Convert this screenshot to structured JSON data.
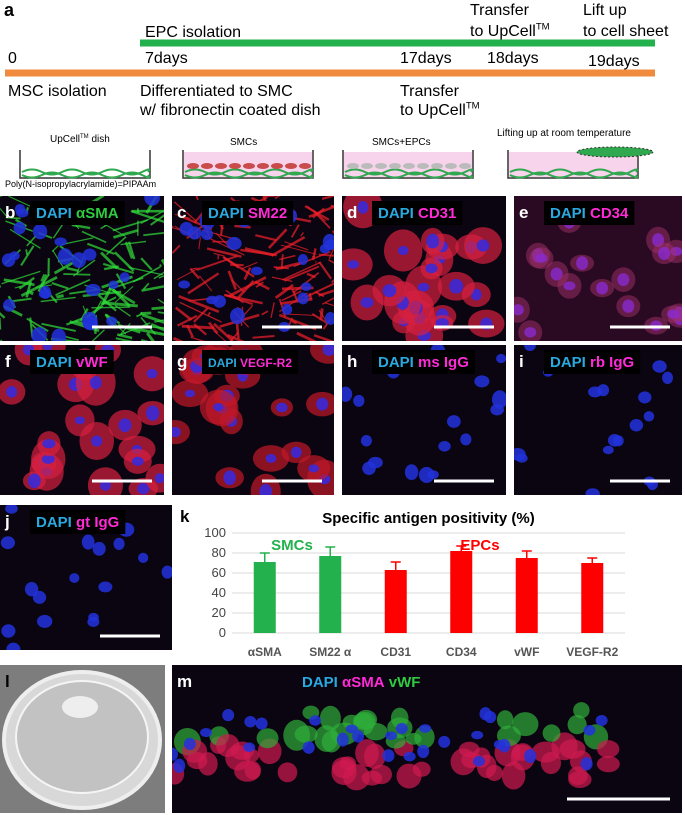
{
  "panel_a": {
    "texts": [
      "a",
      "EPC isolation",
      "Transfer",
      {
        "text": "to UpCell",
        "sup": "TM"
      },
      "Lift up",
      "to cell sheet",
      "0",
      "7days",
      "17days",
      "18days",
      "19days",
      "MSC isolation",
      "Differentiated to SMC",
      "w/ fibronectin coated dish",
      "Transfer",
      {
        "text": "to UpCell",
        "sup": "TM"
      }
    ],
    "dish_labels": [
      {
        "text": "UpCell",
        "sup": "TM",
        "after": " dish"
      },
      "Poly(N-isopropylacrylamide)=PIPAAm",
      "SMCs",
      "SMCs+EPCs",
      "Lifting up at room temperature"
    ]
  },
  "panels": [
    {
      "letter": "b",
      "labels": [
        {
          "text": "DAPI",
          "color": "#29a9e0"
        },
        {
          "text": "αSMA",
          "color": "#2ecc40"
        }
      ]
    },
    {
      "letter": "c",
      "labels": [
        {
          "text": "DAPI",
          "color": "#29a9e0"
        },
        {
          "text": "SM22",
          "color": "#ff2bd6"
        }
      ]
    },
    {
      "letter": "d",
      "labels": [
        {
          "text": "DAPI",
          "color": "#29a9e0"
        },
        {
          "text": "CD31",
          "color": "#ff2bd6"
        }
      ]
    },
    {
      "letter": "e",
      "labels": [
        {
          "text": "DAPI",
          "color": "#29a9e0"
        },
        {
          "text": "CD34",
          "color": "#ff2bd6"
        }
      ]
    },
    {
      "letter": "f",
      "labels": [
        {
          "text": "DAPI",
          "color": "#29a9e0"
        },
        {
          "text": "vWF",
          "color": "#ff2bd6"
        }
      ]
    },
    {
      "letter": "g",
      "labels": [
        {
          "text": "DAPI",
          "color": "#29a9e0"
        },
        {
          "text": "VEGF-R2",
          "color": "#ff2bd6"
        }
      ]
    },
    {
      "letter": "h",
      "labels": [
        {
          "text": "DAPI",
          "color": "#29a9e0"
        },
        {
          "text": "ms IgG",
          "color": "#ff2bd6"
        }
      ]
    },
    {
      "letter": "i",
      "labels": [
        {
          "text": "DAPI",
          "color": "#29a9e0"
        },
        {
          "text": "rb IgG",
          "color": "#ff2bd6"
        }
      ]
    },
    {
      "letter": "j",
      "labels": [
        {
          "text": "DAPI",
          "color": "#29a9e0"
        },
        {
          "text": "gt IgG",
          "color": "#ff2bd6"
        }
      ]
    },
    {
      "letter": "l",
      "labels": []
    },
    {
      "letter": "m",
      "labels": [
        {
          "text": "DAPI",
          "color": "#29a9e0"
        },
        {
          "text": "αSMA",
          "color": "#ff2bd6"
        },
        {
          "text": "vWF",
          "color": "#2ecc40"
        }
      ]
    }
  ],
  "chart_data": {
    "type": "bar",
    "letter": "k",
    "title": "Specific antigen positivity (%)",
    "categories": [
      "αSMA",
      "SM22 α",
      "CD31",
      "CD34",
      "vWF",
      "VEGF-R2"
    ],
    "values": [
      71,
      77,
      63,
      82,
      75,
      70
    ],
    "errors": [
      9,
      9,
      8,
      5,
      7,
      5
    ],
    "colors": [
      "#22b14c",
      "#22b14c",
      "#ff0000",
      "#ff0000",
      "#ff0000",
      "#ff0000"
    ],
    "annotations": [
      {
        "text": "SMCs",
        "color": "#22b14c"
      },
      {
        "text": "EPCs",
        "color": "#ff0000"
      }
    ],
    "ylim": [
      0,
      100
    ],
    "yticks": [
      0,
      20,
      40,
      60,
      80,
      100
    ],
    "grid": true
  }
}
